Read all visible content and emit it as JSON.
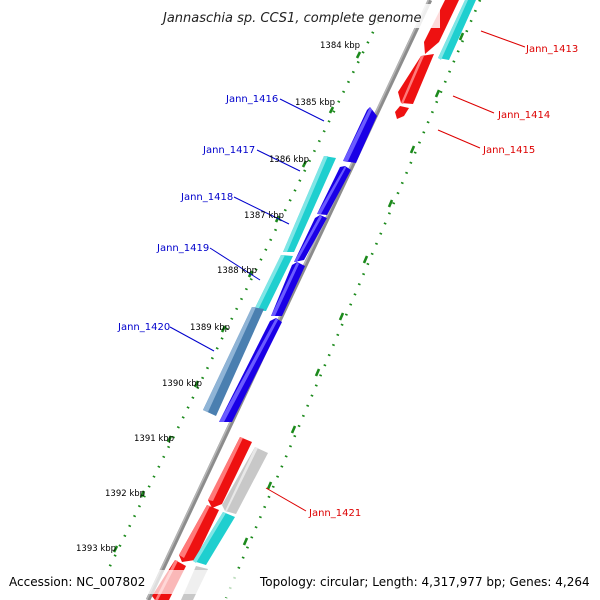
{
  "title": "Jannaschia sp. CCS1, complete genome",
  "footer": {
    "accession": "Accession: NC_007802",
    "summary": "Topology: circular; Length: 4,317,977 bp; Genes: 4,264"
  },
  "colors": {
    "forward_cds": "#1a00e6",
    "reverse_cds": "#ee1111",
    "forward_rna": "#1fcfcf",
    "reverse_rna": "#1fcfcf",
    "selected": "#4a7fb0",
    "pseudo": "#c8c8c8",
    "backbone": "#8c8c8c",
    "ticks": "#1c8a1c",
    "forward_label": "#0000cc",
    "reverse_label": "#dd0000"
  },
  "kbp_ticks": [
    {
      "text": "1384 kbp"
    },
    {
      "text": "1385 kbp"
    },
    {
      "text": "1386 kbp"
    },
    {
      "text": "1387 kbp"
    },
    {
      "text": "1388 kbp"
    },
    {
      "text": "1389 kbp"
    },
    {
      "text": "1390 kbp"
    },
    {
      "text": "1391 kbp"
    },
    {
      "text": "1392 kbp"
    },
    {
      "text": "1393 kbp"
    }
  ],
  "gene_labels": [
    {
      "text": "Jann_1413",
      "strand": "reverse"
    },
    {
      "text": "Jann_1414",
      "strand": "reverse"
    },
    {
      "text": "Jann_1415",
      "strand": "reverse"
    },
    {
      "text": "Jann_1416",
      "strand": "forward"
    },
    {
      "text": "Jann_1417",
      "strand": "forward"
    },
    {
      "text": "Jann_1418",
      "strand": "forward"
    },
    {
      "text": "Jann_1419",
      "strand": "forward"
    },
    {
      "text": "Jann_1420",
      "strand": "forward"
    },
    {
      "text": "Jann_1421",
      "strand": "reverse"
    }
  ]
}
